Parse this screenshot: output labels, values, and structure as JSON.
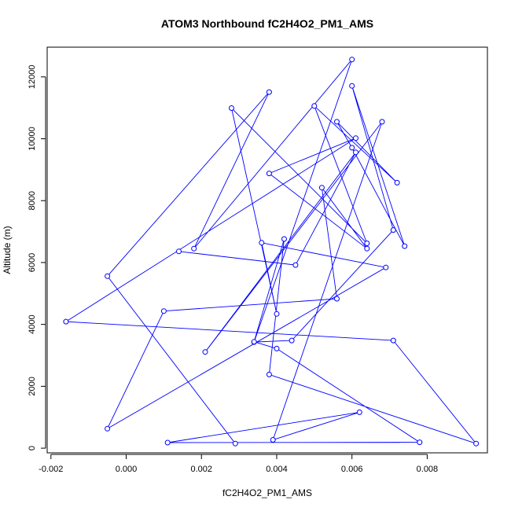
{
  "chart_data": {
    "type": "line",
    "title": "ATOM3 Northbound fC2H4O2_PM1_AMS",
    "xlabel": "fC2H4O2_PM1_AMS",
    "ylabel": "Altitude (m)",
    "xlim": [
      -0.0021,
      0.0096
    ],
    "ylim": [
      -150,
      12960
    ],
    "x_ticks": [
      -0.002,
      0.0,
      0.002,
      0.004,
      0.006,
      0.008
    ],
    "x_tick_labels": [
      "-0.002",
      "0.000",
      "0.002",
      "0.004",
      "0.006",
      "0.008"
    ],
    "y_ticks": [
      0,
      2000,
      4000,
      6000,
      8000,
      10000,
      12000
    ],
    "y_tick_labels": [
      "0",
      "2000",
      "4000",
      "6000",
      "8000",
      "10000",
      "12000"
    ],
    "grid": false,
    "series": [
      {
        "marker": "open-circle",
        "color": "#0000ff",
        "points": [
          {
            "x": 0.0029,
            "y": 150
          },
          {
            "x": -0.0005,
            "y": 5560
          },
          {
            "x": 0.0038,
            "y": 11510
          },
          {
            "x": 0.0018,
            "y": 6450
          },
          {
            "x": 0.006,
            "y": 12560
          },
          {
            "x": 0.0034,
            "y": 3430
          },
          {
            "x": 0.0044,
            "y": 3480
          },
          {
            "x": 0.0071,
            "y": 7050
          },
          {
            "x": 0.006,
            "y": 11710
          },
          {
            "x": 0.0074,
            "y": 6530
          },
          {
            "x": 0.006,
            "y": 9710
          },
          {
            "x": 0.0056,
            "y": 10550
          },
          {
            "x": 0.0072,
            "y": 8580
          },
          {
            "x": 0.005,
            "y": 11060
          },
          {
            "x": 0.0064,
            "y": 6620
          },
          {
            "x": 0.0028,
            "y": 10990
          },
          {
            "x": 0.004,
            "y": 4340
          },
          {
            "x": 0.0036,
            "y": 6640
          },
          {
            "x": 0.0069,
            "y": 5840
          },
          {
            "x": -0.0005,
            "y": 630
          },
          {
            "x": 0.001,
            "y": 4430
          },
          {
            "x": 0.0056,
            "y": 4830
          },
          {
            "x": 0.0052,
            "y": 8420
          },
          {
            "x": 0.0064,
            "y": 6450
          },
          {
            "x": 0.0038,
            "y": 8880
          },
          {
            "x": 0.0061,
            "y": 10020
          },
          {
            "x": -0.0016,
            "y": 4090
          },
          {
            "x": 0.0071,
            "y": 3480
          },
          {
            "x": 0.0093,
            "y": 150
          },
          {
            "x": 0.0038,
            "y": 2380
          },
          {
            "x": 0.0042,
            "y": 6760
          },
          {
            "x": 0.0034,
            "y": 3440
          },
          {
            "x": 0.004,
            "y": 3220
          },
          {
            "x": 0.0078,
            "y": 190
          },
          {
            "x": 0.0011,
            "y": 180
          },
          {
            "x": 0.0062,
            "y": 1160
          },
          {
            "x": 0.0039,
            "y": 270
          },
          {
            "x": 0.0068,
            "y": 10550
          },
          {
            "x": 0.0021,
            "y": 3110
          },
          {
            "x": 0.0061,
            "y": 9560
          },
          {
            "x": 0.0045,
            "y": 5920
          },
          {
            "x": 0.0014,
            "y": 6360
          }
        ]
      }
    ]
  }
}
